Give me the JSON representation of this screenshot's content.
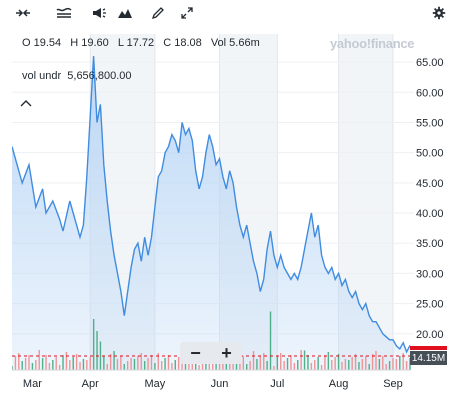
{
  "ohlc": {
    "open_label": "O",
    "open_value": "19.54",
    "high_label": "H",
    "high_value": "19.60",
    "low_label": "L",
    "low_value": "17.72",
    "close_label": "C",
    "close_value": "18.08",
    "vol_label": "Vol",
    "vol_value": "5.66m"
  },
  "volume_legend": {
    "label": "vol undr",
    "value": "5,656,800.00"
  },
  "watermark": "yahoo!finance",
  "zoom": {
    "minus": "−",
    "plus": "+"
  },
  "volume_badge": "14.15M",
  "toolbar_icons": [
    "compare-icon",
    "indicators-icon",
    "events-icon",
    "chart-type-icon",
    "draw-icon",
    "fullscreen-icon",
    "settings-icon"
  ],
  "colors": {
    "line": "#3f8ce0",
    "area": "#b9d6f5",
    "volume_up": "#3ea97d",
    "volume_down": "#ef8a89",
    "volume_line": "#e0101e",
    "band": "#f2f5f8"
  },
  "chart_data": {
    "type": "area",
    "ylim": [
      14,
      68
    ],
    "y_ticks": [
      "65.00",
      "60.00",
      "55.00",
      "50.00",
      "45.00",
      "40.00",
      "35.00",
      "30.00",
      "25.00",
      "20.00"
    ],
    "x_ticks": [
      "Mar",
      "Apr",
      "May",
      "Jun",
      "Jul",
      "Aug",
      "Sep"
    ],
    "price_series": [
      {
        "t": 0,
        "v": 51
      },
      {
        "t": 3,
        "v": 45
      },
      {
        "t": 5,
        "v": 48
      },
      {
        "t": 7,
        "v": 41
      },
      {
        "t": 9,
        "v": 44
      },
      {
        "t": 10,
        "v": 40
      },
      {
        "t": 12,
        "v": 42
      },
      {
        "t": 14,
        "v": 39
      },
      {
        "t": 15,
        "v": 37
      },
      {
        "t": 17,
        "v": 42
      },
      {
        "t": 18,
        "v": 40
      },
      {
        "t": 20,
        "v": 36
      },
      {
        "t": 21,
        "v": 38
      },
      {
        "t": 22,
        "v": 46
      },
      {
        "t": 24,
        "v": 66
      },
      {
        "t": 25,
        "v": 55
      },
      {
        "t": 26,
        "v": 58
      },
      {
        "t": 27,
        "v": 48
      },
      {
        "t": 28,
        "v": 42
      },
      {
        "t": 29,
        "v": 37
      },
      {
        "t": 30,
        "v": 33
      },
      {
        "t": 31,
        "v": 30
      },
      {
        "t": 32,
        "v": 27
      },
      {
        "t": 33,
        "v": 23
      },
      {
        "t": 34,
        "v": 27
      },
      {
        "t": 35,
        "v": 31
      },
      {
        "t": 36,
        "v": 34
      },
      {
        "t": 37,
        "v": 35
      },
      {
        "t": 38,
        "v": 32
      },
      {
        "t": 39,
        "v": 36
      },
      {
        "t": 40,
        "v": 33
      },
      {
        "t": 41,
        "v": 36
      },
      {
        "t": 42,
        "v": 41
      },
      {
        "t": 43,
        "v": 46
      },
      {
        "t": 44,
        "v": 47
      },
      {
        "t": 45,
        "v": 50
      },
      {
        "t": 46,
        "v": 51
      },
      {
        "t": 47,
        "v": 53
      },
      {
        "t": 48,
        "v": 52
      },
      {
        "t": 49,
        "v": 50
      },
      {
        "t": 50,
        "v": 55
      },
      {
        "t": 51,
        "v": 53
      },
      {
        "t": 52,
        "v": 54
      },
      {
        "t": 53,
        "v": 52
      },
      {
        "t": 54,
        "v": 47
      },
      {
        "t": 55,
        "v": 44
      },
      {
        "t": 56,
        "v": 46
      },
      {
        "t": 57,
        "v": 50
      },
      {
        "t": 58,
        "v": 53
      },
      {
        "t": 59,
        "v": 51
      },
      {
        "t": 60,
        "v": 48
      },
      {
        "t": 61,
        "v": 49
      },
      {
        "t": 62,
        "v": 46
      },
      {
        "t": 63,
        "v": 44
      },
      {
        "t": 64,
        "v": 47
      },
      {
        "t": 65,
        "v": 45
      },
      {
        "t": 66,
        "v": 41
      },
      {
        "t": 67,
        "v": 38
      },
      {
        "t": 68,
        "v": 36
      },
      {
        "t": 69,
        "v": 38
      },
      {
        "t": 70,
        "v": 35
      },
      {
        "t": 71,
        "v": 32
      },
      {
        "t": 72,
        "v": 30
      },
      {
        "t": 73,
        "v": 27
      },
      {
        "t": 74,
        "v": 29
      },
      {
        "t": 75,
        "v": 34
      },
      {
        "t": 76,
        "v": 37
      },
      {
        "t": 77,
        "v": 33
      },
      {
        "t": 78,
        "v": 31
      },
      {
        "t": 79,
        "v": 33
      },
      {
        "t": 80,
        "v": 31
      },
      {
        "t": 81,
        "v": 30
      },
      {
        "t": 82,
        "v": 29
      },
      {
        "t": 83,
        "v": 30
      },
      {
        "t": 84,
        "v": 29
      },
      {
        "t": 85,
        "v": 31
      },
      {
        "t": 86,
        "v": 34
      },
      {
        "t": 87,
        "v": 37
      },
      {
        "t": 88,
        "v": 40
      },
      {
        "t": 89,
        "v": 36
      },
      {
        "t": 90,
        "v": 38
      },
      {
        "t": 91,
        "v": 33
      },
      {
        "t": 92,
        "v": 31
      },
      {
        "t": 93,
        "v": 30
      },
      {
        "t": 94,
        "v": 31
      },
      {
        "t": 95,
        "v": 29
      },
      {
        "t": 96,
        "v": 30
      },
      {
        "t": 97,
        "v": 28
      },
      {
        "t": 98,
        "v": 29
      },
      {
        "t": 99,
        "v": 27
      },
      {
        "t": 100,
        "v": 26
      },
      {
        "t": 101,
        "v": 27
      },
      {
        "t": 102,
        "v": 25
      },
      {
        "t": 103,
        "v": 24
      },
      {
        "t": 104,
        "v": 25
      },
      {
        "t": 105,
        "v": 23
      },
      {
        "t": 106,
        "v": 22
      },
      {
        "t": 107,
        "v": 22
      },
      {
        "t": 108,
        "v": 21
      },
      {
        "t": 109,
        "v": 20
      },
      {
        "t": 110,
        "v": 19.5
      },
      {
        "t": 111,
        "v": 19
      },
      {
        "t": 112,
        "v": 19
      },
      {
        "t": 113,
        "v": 18
      },
      {
        "t": 114,
        "v": 17.5
      },
      {
        "t": 115,
        "v": 18.5
      },
      {
        "t": 116,
        "v": 17
      },
      {
        "t": 117,
        "v": 18.08
      }
    ],
    "volume_spikes": [
      {
        "t": 24,
        "v": 34
      },
      {
        "t": 25,
        "v": 26
      },
      {
        "t": 26,
        "v": 19
      },
      {
        "t": 60,
        "v": 18
      },
      {
        "t": 76,
        "v": 39
      },
      {
        "t": 86,
        "v": 13
      }
    ]
  }
}
